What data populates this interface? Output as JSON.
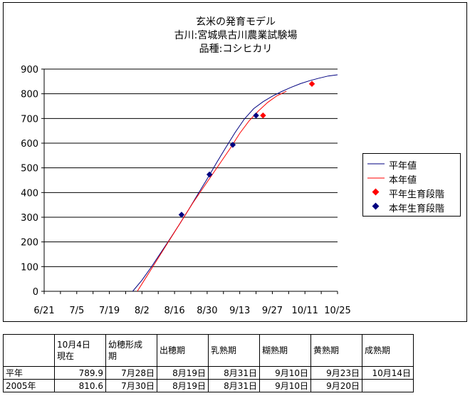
{
  "chart_data": {
    "type": "line",
    "title": "玄米の発育モデル",
    "subtitle_lines": [
      "古川:宮城県古川農業試験場",
      "品種:コシヒカリ"
    ],
    "x_ticks": [
      "6/21",
      "7/5",
      "7/19",
      "8/2",
      "8/16",
      "8/30",
      "9/13",
      "9/27",
      "10/11",
      "10/25"
    ],
    "x_tick_days": [
      0,
      14,
      28,
      42,
      56,
      70,
      84,
      98,
      112,
      126
    ],
    "xlim": [
      0,
      126
    ],
    "ylim": [
      0,
      900
    ],
    "y_ticks": [
      "0",
      "100",
      "200",
      "300",
      "400",
      "500",
      "600",
      "700",
      "800",
      "900"
    ],
    "grid": "horizontal",
    "legend_position": "right",
    "series": [
      {
        "name": "平年値",
        "kind": "line",
        "color": "#000080",
        "x": [
          38,
          42,
          46,
          50,
          54,
          58,
          62,
          66,
          70,
          74,
          78,
          82,
          86,
          90,
          94,
          98,
          102,
          106,
          110,
          114,
          118,
          122,
          126
        ],
        "y": [
          0,
          45,
          98,
          155,
          212,
          270,
          330,
          393,
          455,
          520,
          582,
          643,
          698,
          740,
          768,
          790,
          809,
          826,
          841,
          853,
          863,
          872,
          877
        ]
      },
      {
        "name": "本年値",
        "kind": "line",
        "color": "#ff0000",
        "x": [
          40,
          44,
          48,
          52,
          56,
          60,
          64,
          68,
          72,
          76,
          80,
          84,
          88,
          92,
          96,
          100,
          104
        ],
        "y": [
          0,
          60,
          120,
          180,
          240,
          300,
          360,
          415,
          470,
          525,
          580,
          640,
          690,
          730,
          765,
          792,
          810
        ]
      },
      {
        "name": "平年生育段階",
        "kind": "points",
        "color": "#ff0000",
        "x": [
          94,
          115
        ],
        "y": [
          712,
          840
        ]
      },
      {
        "name": "本年生育段階",
        "kind": "points",
        "color": "#000080",
        "x": [
          59,
          71,
          81,
          91
        ],
        "y": [
          310,
          473,
          593,
          712
        ]
      }
    ],
    "table": {
      "headers": [
        "",
        "10月4日\n現在",
        "幼穂形成\n期",
        "出穂期",
        "乳熟期",
        "糊熟期",
        "黄熟期",
        "成熟期"
      ],
      "rows": [
        [
          "平年",
          "789.9",
          "7月28日",
          "8月19日",
          "8月31日",
          "9月10日",
          "9月23日",
          "10月14日"
        ],
        [
          "2005年",
          "810.6",
          "7月30日",
          "8月19日",
          "8月31日",
          "9月10日",
          "9月20日",
          ""
        ]
      ]
    }
  }
}
